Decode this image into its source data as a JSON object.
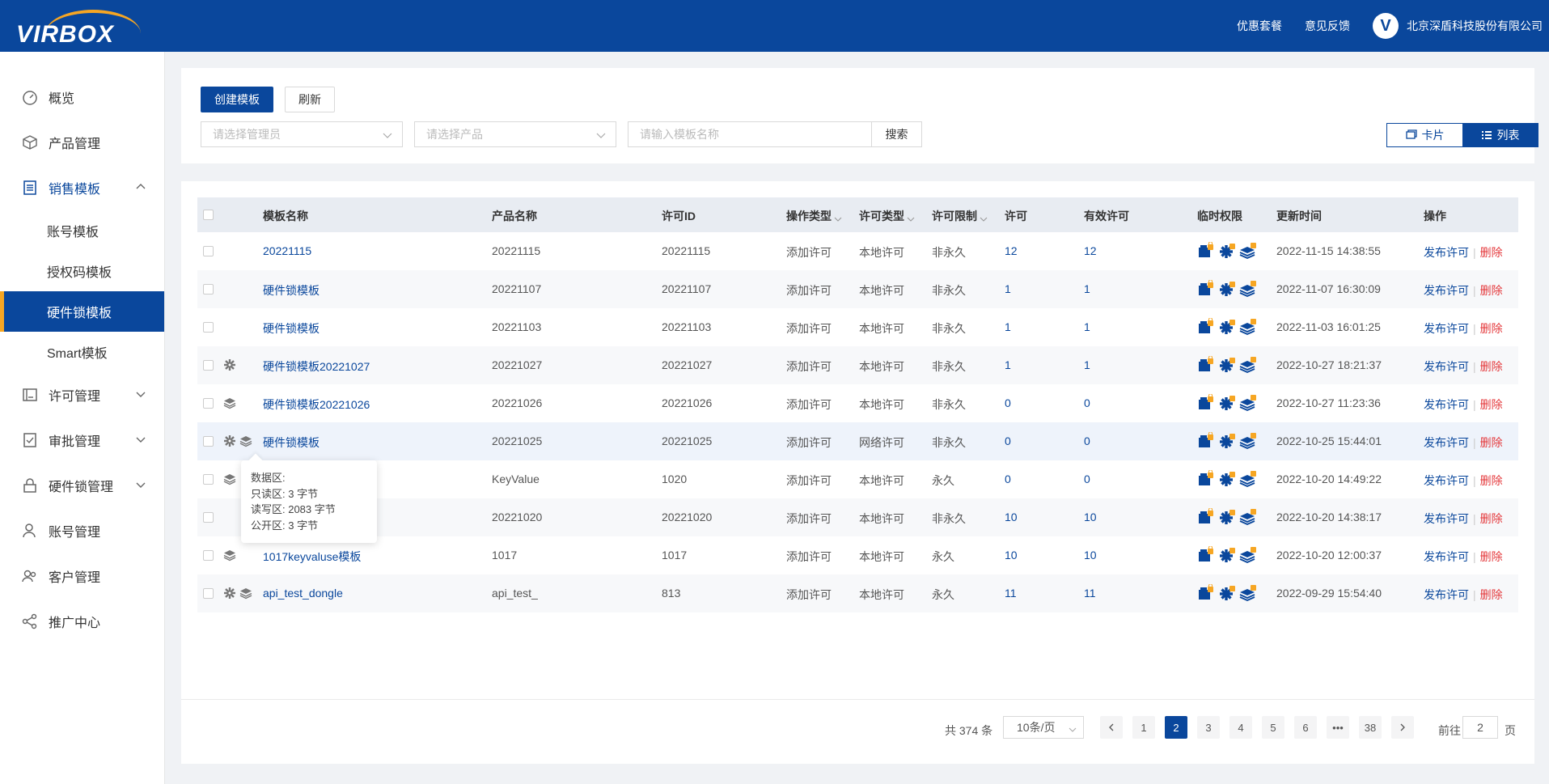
{
  "header": {
    "logo_text": "VIRBOX",
    "links": [
      "优惠套餐",
      "意见反馈"
    ],
    "company_name": "北京深盾科技股份有限公司"
  },
  "sidebar": {
    "items": [
      {
        "label": "概览",
        "icon": "dashboard-icon"
      },
      {
        "label": "产品管理",
        "icon": "cube-icon"
      },
      {
        "label": "销售模板",
        "icon": "list-icon",
        "open": true,
        "children": [
          "账号模板",
          "授权码模板",
          "硬件锁模板",
          "Smart模板"
        ]
      },
      {
        "label": "许可管理",
        "icon": "license-icon"
      },
      {
        "label": "审批管理",
        "icon": "approval-icon"
      },
      {
        "label": "硬件锁管理",
        "icon": "lock-icon"
      },
      {
        "label": "账号管理",
        "icon": "user-icon"
      },
      {
        "label": "客户管理",
        "icon": "customers-icon"
      },
      {
        "label": "推广中心",
        "icon": "share-icon"
      }
    ],
    "active_child": "硬件锁模板"
  },
  "toolbar": {
    "create_label": "创建模板",
    "refresh_label": "刷新",
    "admin_placeholder": "请选择管理员",
    "product_placeholder": "请选择产品",
    "name_placeholder": "请输入模板名称",
    "search_label": "搜索",
    "view_card": "卡片",
    "view_list": "列表"
  },
  "table": {
    "columns": [
      "模板名称",
      "产品名称",
      "许可ID",
      "操作类型",
      "许可类型",
      "许可限制",
      "许可",
      "有效许可",
      "临时权限",
      "更新时间",
      "操作"
    ],
    "rows": [
      {
        "name": "20221115",
        "product": "20221115",
        "license_id": "20221115",
        "op_type": "添加许可",
        "lic_type": "本地许可",
        "limit": "非永久",
        "lic": "12",
        "valid": "12",
        "time": "2022-11-15 14:38:55",
        "icons": []
      },
      {
        "name": "硬件锁模板",
        "product": "20221107",
        "license_id": "20221107",
        "op_type": "添加许可",
        "lic_type": "本地许可",
        "limit": "非永久",
        "lic": "1",
        "valid": "1",
        "time": "2022-11-07 16:30:09",
        "icons": []
      },
      {
        "name": "硬件锁模板",
        "product": "20221103",
        "license_id": "20221103",
        "op_type": "添加许可",
        "lic_type": "本地许可",
        "limit": "非永久",
        "lic": "1",
        "valid": "1",
        "time": "2022-11-03 16:01:25",
        "icons": []
      },
      {
        "name": "硬件锁模板20221027",
        "product": "20221027",
        "license_id": "20221027",
        "op_type": "添加许可",
        "lic_type": "本地许可",
        "limit": "非永久",
        "lic": "1",
        "valid": "1",
        "time": "2022-10-27 18:21:37",
        "icons": [
          "gear"
        ]
      },
      {
        "name": "硬件锁模板20221026",
        "product": "20221026",
        "license_id": "20221026",
        "op_type": "添加许可",
        "lic_type": "本地许可",
        "limit": "非永久",
        "lic": "0",
        "valid": "0",
        "time": "2022-10-27 11:23:36",
        "icons": [
          "layers"
        ]
      },
      {
        "name": "硬件锁模板",
        "product": "20221025",
        "license_id": "20221025",
        "op_type": "添加许可",
        "lic_type": "网络许可",
        "limit": "非永久",
        "lic": "0",
        "valid": "0",
        "time": "2022-10-25 15:44:01",
        "icons": [
          "gear",
          "layers"
        ]
      },
      {
        "name": "",
        "product": "KeyValue",
        "license_id": "1020",
        "op_type": "添加许可",
        "lic_type": "本地许可",
        "limit": "永久",
        "lic": "0",
        "valid": "0",
        "time": "2022-10-20 14:49:22",
        "icons": [
          "layers"
        ]
      },
      {
        "name": "",
        "product": "20221020",
        "license_id": "20221020",
        "op_type": "添加许可",
        "lic_type": "本地许可",
        "limit": "非永久",
        "lic": "10",
        "valid": "10",
        "time": "2022-10-20 14:38:17",
        "icons": []
      },
      {
        "name": "1017keyvaluse模板",
        "product": "1017",
        "license_id": "1017",
        "op_type": "添加许可",
        "lic_type": "本地许可",
        "limit": "永久",
        "lic": "10",
        "valid": "10",
        "time": "2022-10-20 12:00:37",
        "icons": [
          "layers"
        ]
      },
      {
        "name": "api_test_dongle",
        "product": "api_test_",
        "license_id": "813",
        "op_type": "添加许可",
        "lic_type": "本地许可",
        "limit": "永久",
        "lic": "11",
        "valid": "11",
        "time": "2022-09-29 15:54:40",
        "icons": [
          "gear",
          "layers"
        ]
      }
    ],
    "action_publish": "发布许可",
    "action_delete": "删除"
  },
  "tooltip": {
    "title": "数据区:",
    "lines": [
      "只读区: 3 字节",
      "读写区: 2083 字节",
      "公开区: 3 字节"
    ]
  },
  "pagination": {
    "total": "共 374 条",
    "page_size": "10条/页",
    "pages": [
      "1",
      "2",
      "3",
      "4",
      "5",
      "6",
      "•••",
      "38"
    ],
    "current": "2",
    "goto_prefix": "前往",
    "goto_value": "2",
    "goto_suffix": "页"
  },
  "colors": {
    "brand": "#0a479c",
    "accent": "#f6a623",
    "danger": "#e4393c"
  }
}
